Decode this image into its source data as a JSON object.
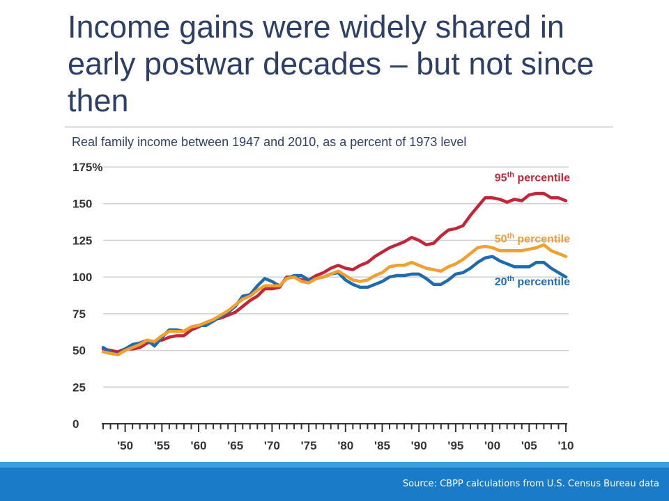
{
  "slide": {
    "title": "Income gains were widely shared in early postwar decades – but not since then",
    "footer_source": "Source: CBPP calculations from U.S. Census Bureau data"
  },
  "colors": {
    "title": "#2e3f66",
    "p95": "#c0283a",
    "p50": "#f0a030",
    "p20": "#1f6bb0",
    "footer": "#1a7cc8"
  },
  "chart_data": {
    "type": "line",
    "title": "Real family income between 1947 and 2010, as a percent of 1973 level",
    "xlabel": "",
    "ylabel": "",
    "xlim": [
      1947,
      2010
    ],
    "ylim": [
      0,
      175
    ],
    "yticks": [
      {
        "value": 175,
        "label": "175%"
      },
      {
        "value": 150,
        "label": "150"
      },
      {
        "value": 125,
        "label": "125"
      },
      {
        "value": 100,
        "label": "100"
      },
      {
        "value": 75,
        "label": "75"
      },
      {
        "value": 50,
        "label": "50"
      },
      {
        "value": 25,
        "label": "25"
      },
      {
        "value": 0,
        "label": "0"
      }
    ],
    "xticks": [
      {
        "value": 1950,
        "label": "'50"
      },
      {
        "value": 1955,
        "label": "'55"
      },
      {
        "value": 1960,
        "label": "'60"
      },
      {
        "value": 1965,
        "label": "'65"
      },
      {
        "value": 1970,
        "label": "'70"
      },
      {
        "value": 1975,
        "label": "'75"
      },
      {
        "value": 1980,
        "label": "'80"
      },
      {
        "value": 1985,
        "label": "'85"
      },
      {
        "value": 1990,
        "label": "'90"
      },
      {
        "value": 1995,
        "label": "'95"
      },
      {
        "value": 2000,
        "label": "'00"
      },
      {
        "value": 2005,
        "label": "'05"
      },
      {
        "value": 2010,
        "label": "'10"
      }
    ],
    "grid": true,
    "series": [
      {
        "name_base": "95",
        "name_sup": "th",
        "name_rest": " percentile",
        "key": "p95",
        "x": [
          1947,
          1948,
          1949,
          1950,
          1951,
          1952,
          1953,
          1954,
          1955,
          1956,
          1957,
          1958,
          1959,
          1960,
          1961,
          1962,
          1963,
          1964,
          1965,
          1966,
          1967,
          1968,
          1969,
          1970,
          1971,
          1972,
          1973,
          1974,
          1975,
          1976,
          1977,
          1978,
          1979,
          1980,
          1981,
          1982,
          1983,
          1984,
          1985,
          1986,
          1987,
          1988,
          1989,
          1990,
          1991,
          1992,
          1993,
          1994,
          1995,
          1996,
          1997,
          1998,
          1999,
          2000,
          2001,
          2002,
          2003,
          2004,
          2005,
          2006,
          2007,
          2008,
          2009,
          2010
        ],
        "values": [
          51,
          50,
          49,
          51,
          51,
          52,
          55,
          56,
          57,
          59,
          60,
          60,
          64,
          66,
          69,
          71,
          72,
          74,
          76,
          80,
          84,
          87,
          92,
          92,
          93,
          100,
          100,
          98,
          98,
          101,
          103,
          106,
          108,
          106,
          105,
          108,
          110,
          114,
          117,
          120,
          122,
          124,
          127,
          125,
          122,
          123,
          128,
          132,
          133,
          135,
          142,
          148,
          154,
          154,
          153,
          151,
          153,
          152,
          156,
          157,
          157,
          154,
          154,
          152
        ]
      },
      {
        "name_base": "50",
        "name_sup": "th",
        "name_rest": " percentile",
        "key": "p50",
        "x": [
          1947,
          1948,
          1949,
          1950,
          1951,
          1952,
          1953,
          1954,
          1955,
          1956,
          1957,
          1958,
          1959,
          1960,
          1961,
          1962,
          1963,
          1964,
          1965,
          1966,
          1967,
          1968,
          1969,
          1970,
          1971,
          1972,
          1973,
          1974,
          1975,
          1976,
          1977,
          1978,
          1979,
          1980,
          1981,
          1982,
          1983,
          1984,
          1985,
          1986,
          1987,
          1988,
          1989,
          1990,
          1991,
          1992,
          1993,
          1994,
          1995,
          1996,
          1997,
          1998,
          1999,
          2000,
          2001,
          2002,
          2003,
          2004,
          2005,
          2006,
          2007,
          2008,
          2009,
          2010
        ],
        "values": [
          49,
          48,
          47,
          50,
          52,
          54,
          57,
          56,
          60,
          63,
          63,
          63,
          66,
          67,
          69,
          71,
          74,
          77,
          81,
          85,
          87,
          91,
          94,
          94,
          94,
          99,
          100,
          97,
          96,
          99,
          100,
          102,
          104,
          101,
          98,
          97,
          98,
          101,
          103,
          107,
          108,
          108,
          110,
          108,
          106,
          105,
          104,
          107,
          109,
          112,
          116,
          120,
          121,
          120,
          118,
          118,
          118,
          118,
          119,
          120,
          122,
          118,
          116,
          114
        ]
      },
      {
        "name_base": "20",
        "name_sup": "th",
        "name_rest": " percentile",
        "key": "p20",
        "x": [
          1947,
          1948,
          1949,
          1950,
          1951,
          1952,
          1953,
          1954,
          1955,
          1956,
          1957,
          1958,
          1959,
          1960,
          1961,
          1962,
          1963,
          1964,
          1965,
          1966,
          1967,
          1968,
          1969,
          1970,
          1971,
          1972,
          1973,
          1974,
          1975,
          1976,
          1977,
          1978,
          1979,
          1980,
          1981,
          1982,
          1983,
          1984,
          1985,
          1986,
          1987,
          1988,
          1989,
          1990,
          1991,
          1992,
          1993,
          1994,
          1995,
          1996,
          1997,
          1998,
          1999,
          2000,
          2001,
          2002,
          2003,
          2004,
          2005,
          2006,
          2007,
          2008,
          2009,
          2010
        ],
        "values": [
          52,
          49,
          47,
          51,
          54,
          55,
          57,
          53,
          59,
          64,
          64,
          63,
          66,
          67,
          67,
          70,
          73,
          76,
          80,
          87,
          88,
          94,
          99,
          97,
          94,
          99,
          101,
          101,
          98,
          99,
          100,
          102,
          103,
          98,
          95,
          93,
          93,
          95,
          97,
          100,
          101,
          101,
          102,
          102,
          99,
          95,
          95,
          98,
          102,
          103,
          106,
          110,
          113,
          114,
          111,
          109,
          107,
          107,
          107,
          110,
          110,
          106,
          103,
          100
        ]
      }
    ]
  }
}
